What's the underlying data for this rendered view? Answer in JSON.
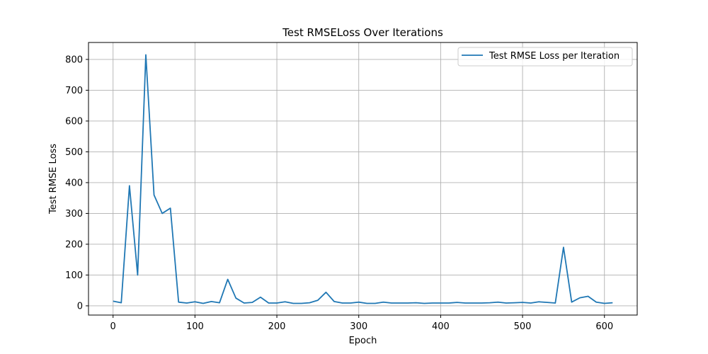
{
  "chart_data": {
    "type": "line",
    "title": "Test RMSELoss Over Iterations",
    "xlabel": "Epoch",
    "ylabel": "Test RMSE Loss",
    "xlim": [
      -30,
      640
    ],
    "ylim": [
      -30,
      855
    ],
    "xticks": [
      0,
      100,
      200,
      300,
      400,
      500,
      600
    ],
    "yticks": [
      0,
      100,
      200,
      300,
      400,
      500,
      600,
      700,
      800
    ],
    "grid": true,
    "legend_position": "top-right",
    "series": [
      {
        "name": "Test RMSE Loss per Iteration",
        "color": "#1f77b4",
        "x": [
          0,
          10,
          20,
          30,
          40,
          50,
          60,
          70,
          80,
          90,
          100,
          110,
          120,
          130,
          140,
          150,
          160,
          170,
          180,
          190,
          200,
          210,
          220,
          230,
          240,
          250,
          260,
          270,
          280,
          290,
          300,
          310,
          320,
          330,
          340,
          350,
          360,
          370,
          380,
          390,
          400,
          410,
          420,
          430,
          440,
          450,
          460,
          470,
          480,
          490,
          500,
          510,
          520,
          530,
          540,
          550,
          560,
          570,
          580,
          590,
          600,
          610
        ],
        "y": [
          15,
          10,
          390,
          100,
          815,
          360,
          300,
          317,
          12,
          9,
          13,
          8,
          14,
          10,
          86,
          25,
          9,
          11,
          28,
          9,
          9,
          13,
          8,
          8,
          10,
          18,
          44,
          14,
          9,
          9,
          12,
          8,
          8,
          12,
          9,
          9,
          9,
          10,
          8,
          9,
          9,
          9,
          11,
          9,
          9,
          9,
          10,
          12,
          9,
          10,
          11,
          9,
          13,
          11,
          9,
          190,
          12,
          26,
          31,
          12,
          8,
          10
        ]
      }
    ]
  }
}
